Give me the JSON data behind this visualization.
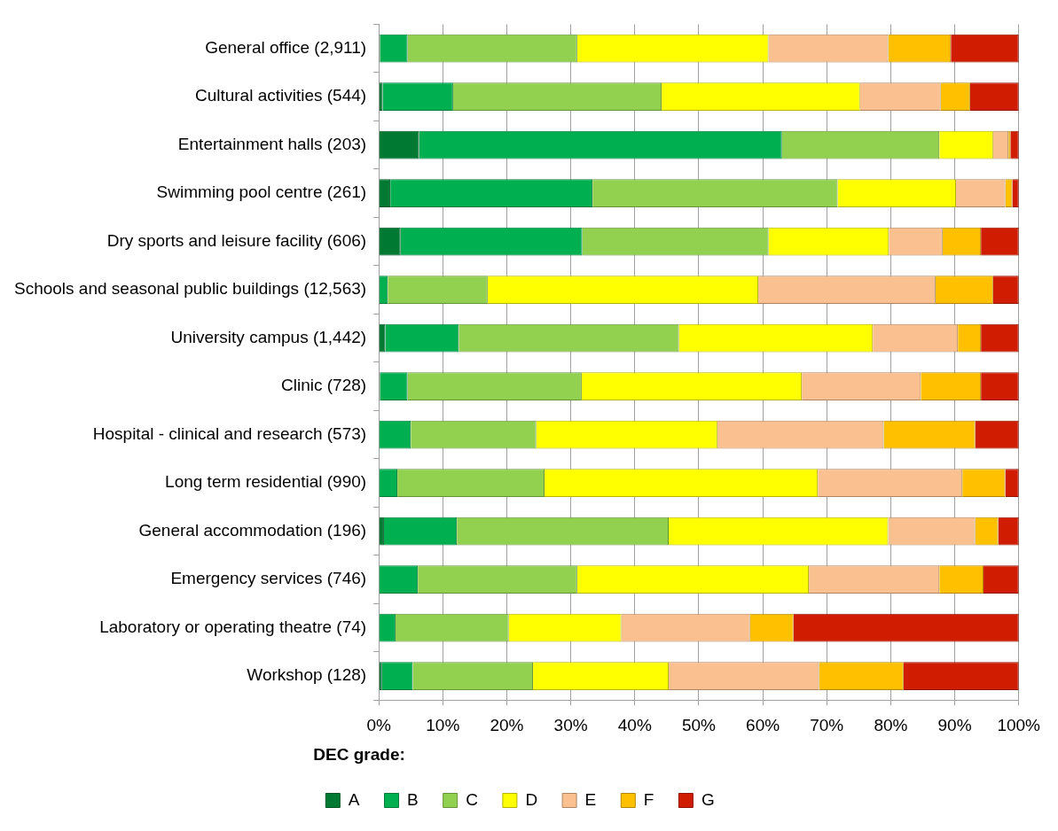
{
  "chart_data": {
    "type": "bar",
    "orientation": "horizontal",
    "stacked": true,
    "legend_title": "DEC grade:",
    "legend": "bottom",
    "grid": "x",
    "categories": [
      "General office (2,911)",
      "Cultural activities (544)",
      "Entertainment halls (203)",
      "Swimming pool centre (261)",
      "Dry sports and leisure facility (606)",
      "Schools and seasonal public buildings (12,563)",
      "University campus (1,442)",
      "Clinic (728)",
      "Hospital - clinical and research (573)",
      "Long term residential (990)",
      "General accommodation (196)",
      "Emergency services (746)",
      "Laboratory or operating theatre (74)",
      "Workshop (128)"
    ],
    "xlim": [
      0,
      100
    ],
    "xticks": [
      {
        "value": 0,
        "label": "0%"
      },
      {
        "value": 10,
        "label": "10%"
      },
      {
        "value": 20,
        "label": "20%"
      },
      {
        "value": 30,
        "label": "30%"
      },
      {
        "value": 40,
        "label": "40%"
      },
      {
        "value": 50,
        "label": "50%"
      },
      {
        "value": 60,
        "label": "60%"
      },
      {
        "value": 70,
        "label": "70%"
      },
      {
        "value": 80,
        "label": "80%"
      },
      {
        "value": 90,
        "label": "90%"
      },
      {
        "value": 100,
        "label": "100%"
      }
    ],
    "series": [
      {
        "name": "A",
        "color": "#007a33",
        "values": [
          0.2,
          0.6,
          6.3,
          1.8,
          3.4,
          0.1,
          1.0,
          0.2,
          0,
          0,
          0.8,
          0,
          0,
          0.5
        ]
      },
      {
        "name": "B",
        "color": "#00b050",
        "values": [
          4.3,
          11.0,
          56.7,
          31.6,
          28.4,
          1.3,
          11.5,
          4.3,
          5.0,
          2.9,
          11.4,
          6.1,
          2.6,
          4.8
        ]
      },
      {
        "name": "C",
        "color": "#92d050",
        "values": [
          26.5,
          32.6,
          24.6,
          38.3,
          29.1,
          15.6,
          34.4,
          27.2,
          19.6,
          23.0,
          33.1,
          24.9,
          17.7,
          18.8
        ]
      },
      {
        "name": "D",
        "color": "#ffff00",
        "values": [
          29.9,
          31.0,
          8.4,
          18.5,
          18.8,
          42.3,
          30.3,
          34.4,
          28.3,
          42.7,
          34.3,
          36.2,
          17.6,
          21.2
        ]
      },
      {
        "name": "E",
        "color": "#fac090",
        "values": [
          18.7,
          12.6,
          2.4,
          7.7,
          8.4,
          27.7,
          13.3,
          18.6,
          26.0,
          22.6,
          13.6,
          20.4,
          20.1,
          23.5
        ]
      },
      {
        "name": "F",
        "color": "#ffc000",
        "values": [
          9.8,
          4.6,
          0.3,
          1.1,
          6.0,
          9.0,
          3.6,
          9.4,
          14.3,
          6.7,
          3.6,
          6.9,
          6.8,
          13.2
        ]
      },
      {
        "name": "G",
        "color": "#d01c00",
        "values": [
          10.6,
          7.6,
          1.3,
          1.0,
          5.9,
          4.0,
          5.9,
          5.9,
          6.8,
          2.1,
          3.2,
          5.5,
          35.2,
          18.0
        ]
      }
    ]
  }
}
